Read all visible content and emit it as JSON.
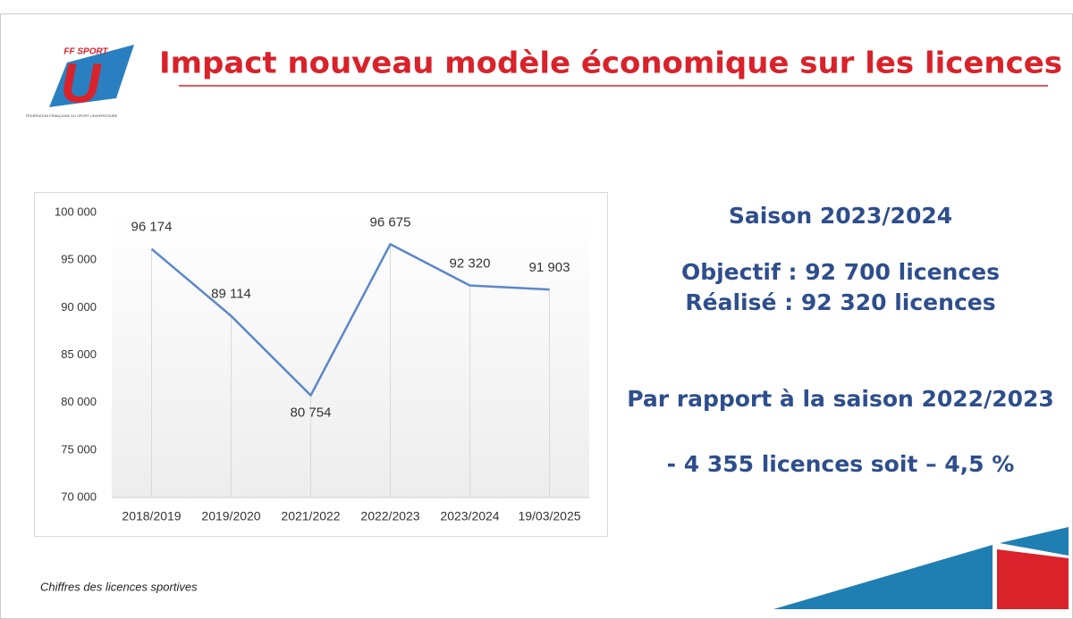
{
  "header": {
    "title": "Impact nouveau modèle économique sur les licences",
    "logo_top": "FF SPORT",
    "logo_letter": "U",
    "logo_caption": "FÉDÉRATION FRANÇAISE DU SPORT UNIVERSITAIRE"
  },
  "chart_data": {
    "type": "line",
    "categories": [
      "2018/2019",
      "2019/2020",
      "2021/2022",
      "2022/2023",
      "2023/2024",
      "19/03/2025"
    ],
    "values": [
      96174,
      89114,
      80754,
      96675,
      92320,
      91903
    ],
    "value_labels": [
      "96 174",
      "89 114",
      "80 754",
      "96 675",
      "92 320",
      "91 903"
    ],
    "color": "#5b87c9",
    "ylim": [
      70000,
      100000
    ],
    "yticks": [
      {
        "value": 70000,
        "label": "70 000"
      },
      {
        "value": 75000,
        "label": "75 000"
      },
      {
        "value": 80000,
        "label": "80 000"
      },
      {
        "value": 85000,
        "label": "85 000"
      },
      {
        "value": 90000,
        "label": "90 000"
      },
      {
        "value": 95000,
        "label": "95 000"
      },
      {
        "value": 100000,
        "label": "100 000"
      }
    ],
    "grid": true
  },
  "panel": {
    "season": "Saison 2023/2024",
    "objective": "Objectif : 92 700 licences",
    "achieved": "Réalisé : 92 320 licences",
    "comparison": "Par rapport à la saison 2022/2023",
    "difference": "- 4 355 licences soit – 4,5 %"
  },
  "footnote": "Chiffres des licences sportives"
}
